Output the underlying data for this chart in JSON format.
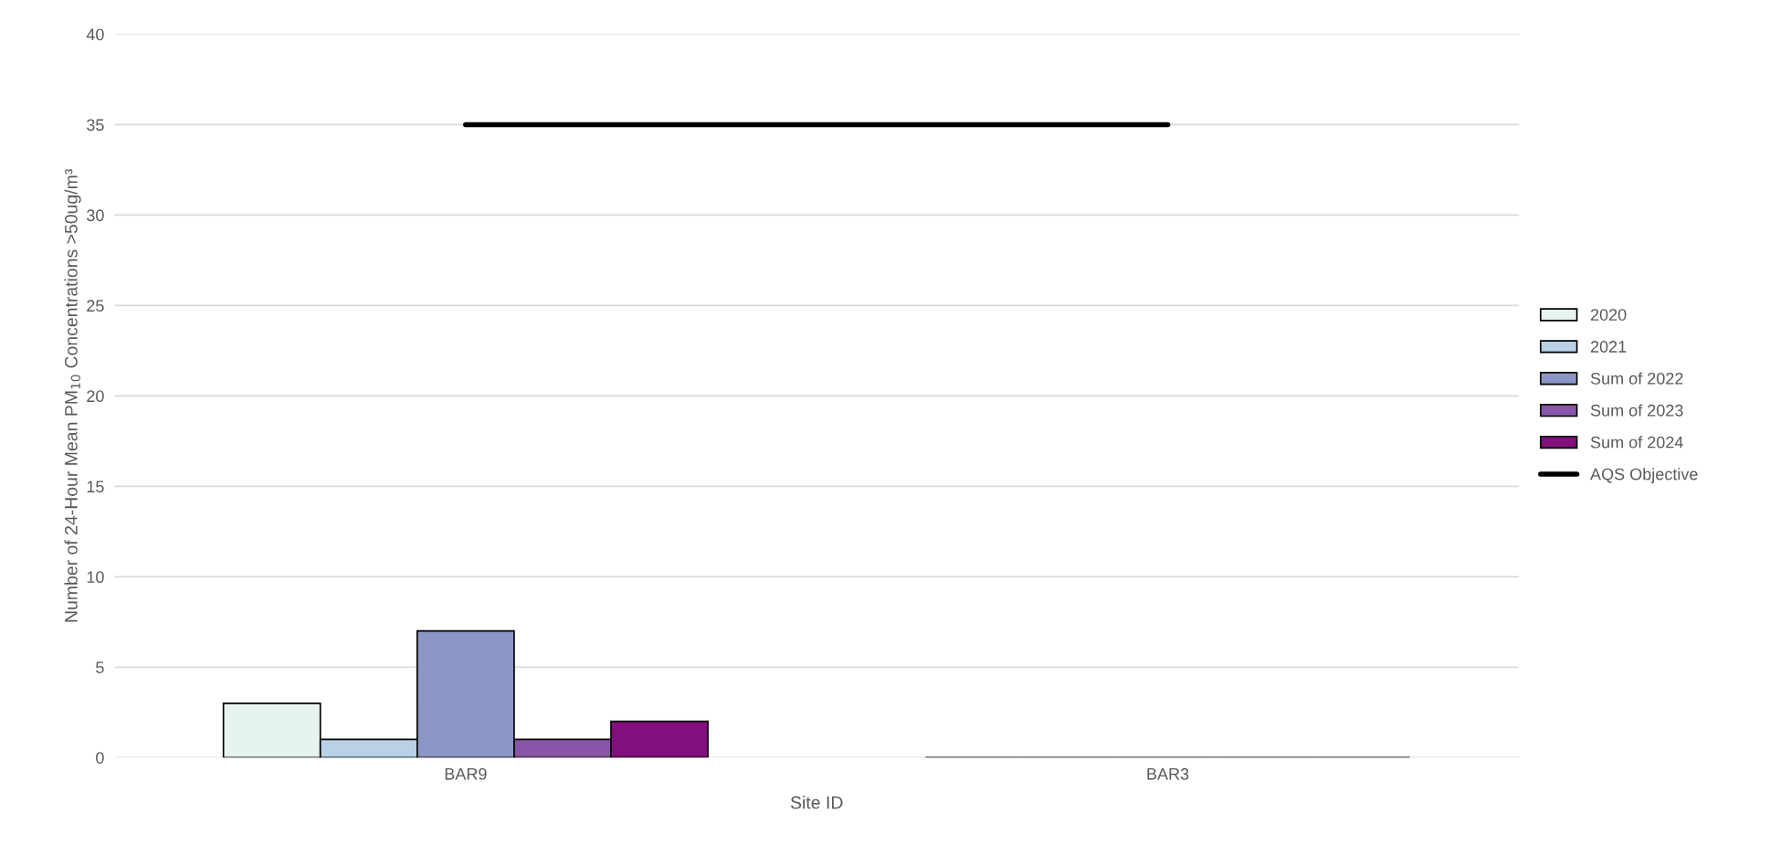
{
  "chart_data": {
    "type": "bar",
    "xlabel": "Site ID",
    "ylabel": "Number of 24-Hour Mean PM$_{10}$ Concentrations >50ug/m³",
    "categories": [
      "BAR9",
      "BAR3"
    ],
    "series": [
      {
        "name": "2020",
        "color": "#e6f3f1",
        "values": [
          3,
          0
        ]
      },
      {
        "name": "2021",
        "color": "#b9d1e7",
        "values": [
          1,
          0
        ]
      },
      {
        "name": "Sum of 2022",
        "color": "#8c96c6",
        "values": [
          7,
          0
        ]
      },
      {
        "name": "Sum of 2023",
        "color": "#8856a7",
        "values": [
          1,
          0
        ]
      },
      {
        "name": "Sum of 2024",
        "color": "#810f7c",
        "values": [
          2,
          0
        ]
      },
      {
        "name": "AQS Objective",
        "type": "line",
        "color": "#000000",
        "values": [
          35,
          35
        ]
      }
    ],
    "ylim": [
      0,
      40
    ],
    "yticks": [
      0,
      5,
      10,
      15,
      20,
      25,
      30,
      35,
      40
    ],
    "grid": "y",
    "legend": "right"
  }
}
